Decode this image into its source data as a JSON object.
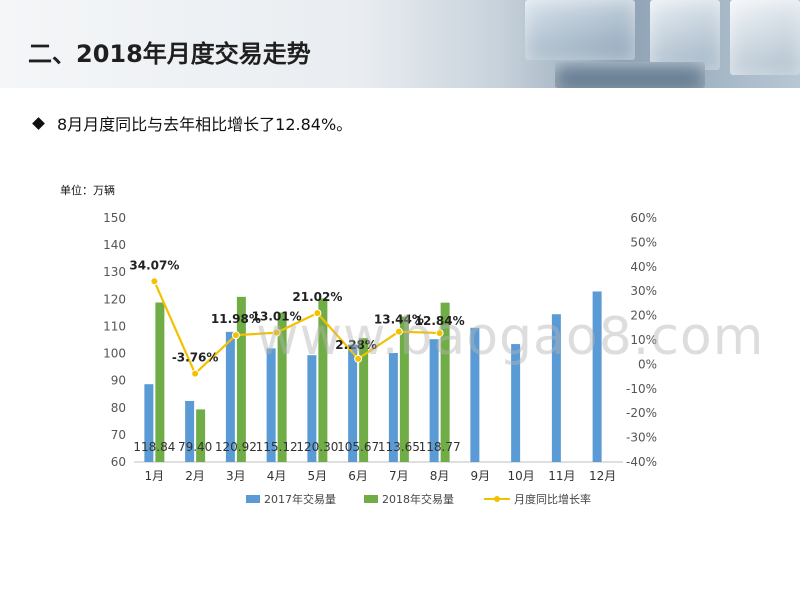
{
  "header": {
    "title": "二、2018年月度交易走势"
  },
  "bullet": {
    "text": "8月月度同比与去年相比增长了12.84%。"
  },
  "unit": {
    "text": "单位：万辆"
  },
  "watermark": {
    "text": "www.baogao8.com"
  },
  "colors": {
    "series_2017": "#5b9bd5",
    "series_2018": "#70ad47",
    "series_growth": "#f2c200"
  },
  "chart_data": {
    "type": "bar",
    "categories": [
      "1月",
      "2月",
      "3月",
      "4月",
      "5月",
      "6月",
      "7月",
      "8月",
      "9月",
      "10月",
      "11月",
      "12月"
    ],
    "series": [
      {
        "name": "2017年交易量",
        "type": "bar",
        "axis": "left",
        "values": [
          88.7,
          82.5,
          108.0,
          101.9,
          99.4,
          103.3,
          100.2,
          105.3,
          109.5,
          103.5,
          114.5,
          122.9
        ]
      },
      {
        "name": "2018年交易量",
        "type": "bar",
        "axis": "left",
        "values": [
          118.84,
          79.4,
          120.92,
          115.12,
          120.3,
          105.67,
          113.65,
          118.77,
          null,
          null,
          null,
          null
        ]
      },
      {
        "name": "月度同比增长率",
        "type": "line",
        "axis": "right",
        "values": [
          34.07,
          -3.76,
          11.98,
          13.01,
          21.02,
          2.28,
          13.44,
          12.84,
          null,
          null,
          null,
          null
        ]
      }
    ],
    "bar_value_labels": [
      "118.84",
      "79.40",
      "120.92",
      "115.12",
      "120.30",
      "105.67",
      "113.65",
      "118.77"
    ],
    "growth_labels": [
      "34.07%",
      "-3.76%",
      "11.98%",
      "13.01%",
      "21.02%",
      "2.28%",
      "13.44%",
      "12.84%"
    ],
    "left_axis": {
      "min": 60,
      "max": 150,
      "ticks": [
        "60",
        "70",
        "80",
        "90",
        "100",
        "110",
        "120",
        "130",
        "140",
        "150"
      ]
    },
    "right_axis": {
      "min": -40,
      "max": 60,
      "ticks": [
        "-40%",
        "-30%",
        "-20%",
        "-10%",
        "0%",
        "10%",
        "20%",
        "30%",
        "40%",
        "50%",
        "60%"
      ]
    },
    "legend": [
      "2017年交易量",
      "2018年交易量",
      "月度同比增长率"
    ],
    "legend_position": "bottom",
    "grid": false
  }
}
